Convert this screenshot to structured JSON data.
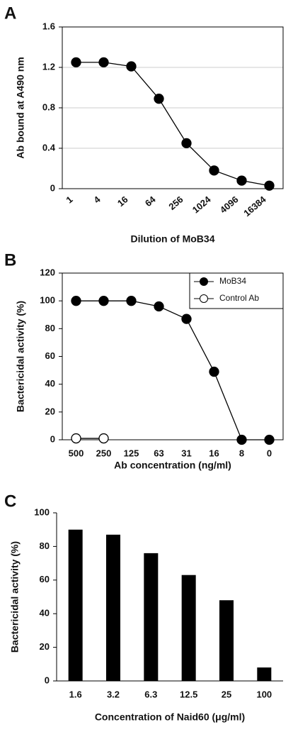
{
  "chart_data": [
    {
      "type": "line",
      "panel": "A",
      "ylabel": "Ab bound at A490 nm",
      "xlabel": "Dilution of MoB34",
      "categories": [
        "1",
        "4",
        "16",
        "64",
        "256",
        "1024",
        "4096",
        "16384"
      ],
      "series": [
        {
          "name": "MoB34",
          "color": "#000000",
          "marker_fill": "#000000",
          "values": [
            1.25,
            1.25,
            1.21,
            0.89,
            0.45,
            0.18,
            0.08,
            0.03
          ]
        }
      ],
      "ylim": [
        0,
        1.6
      ],
      "yticks": [
        0,
        0.4,
        0.8,
        1.2,
        1.6
      ],
      "grid": true,
      "rotate_xlabels": true
    },
    {
      "type": "line",
      "panel": "B",
      "ylabel": "Bactericidal activity (%)",
      "xlabel": "Ab concentration (ng/ml)",
      "categories": [
        "500",
        "250",
        "125",
        "63",
        "31",
        "16",
        "8",
        "0"
      ],
      "series": [
        {
          "name": "MoB34",
          "color": "#000000",
          "marker_fill": "#000000",
          "values": [
            100,
            100,
            100,
            96,
            87,
            49,
            0,
            0
          ]
        },
        {
          "name": "Control Ab",
          "color": "#000000",
          "marker_fill": "#ffffff",
          "values": [
            1,
            1,
            null,
            null,
            null,
            null,
            null,
            null
          ]
        }
      ],
      "ylim": [
        0,
        120
      ],
      "yticks": [
        0,
        20,
        40,
        60,
        80,
        100,
        120
      ],
      "grid": false,
      "legend": "top-right"
    },
    {
      "type": "bar",
      "panel": "C",
      "ylabel": "Bactericidal activity (%)",
      "xlabel": "Concentration of Naid60 (μg/ml)",
      "categories": [
        "1.6",
        "3.2",
        "6.3",
        "12.5",
        "25",
        "100"
      ],
      "values": [
        90,
        87,
        76,
        63,
        48,
        8
      ],
      "color": "#000000",
      "ylim": [
        0,
        100
      ],
      "yticks": [
        0,
        20,
        40,
        60,
        80,
        100
      ],
      "grid": false
    }
  ]
}
